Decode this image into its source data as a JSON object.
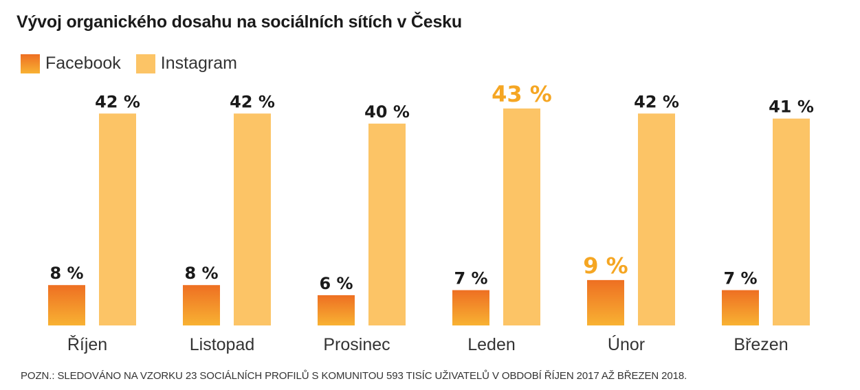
{
  "title": "Vývoj organického dosahu na sociálních sítích v Česku",
  "legend": {
    "facebook": "Facebook",
    "instagram": "Instagram"
  },
  "note": "POZN.: SLEDOVÁNO NA VZORKU 23 SOCIÁLNÍCH PROFILŮ S KOMUNITOU 593 TISÍC UŽIVATELŮ V OBDOBÍ ŘÍJEN 2017 AŽ BŘEZEN 2018.",
  "colors": {
    "facebook_top": "#ee6f22",
    "facebook_bottom": "#f8b233",
    "instagram": "#fcc466",
    "label_default": "#1a1a1a",
    "label_highlight": "#f5a623"
  },
  "chart_data": {
    "type": "bar",
    "categories": [
      "Říjen",
      "Listopad",
      "Prosinec",
      "Leden",
      "Únor",
      "Březen"
    ],
    "series": [
      {
        "name": "Facebook",
        "values": [
          8,
          8,
          6,
          7,
          9,
          7
        ],
        "labels": [
          "8 %",
          "8 %",
          "6 %",
          "7 %",
          "9 %",
          "7 %"
        ],
        "highlight_index": 4
      },
      {
        "name": "Instagram",
        "values": [
          42,
          42,
          40,
          43,
          42,
          41
        ],
        "labels": [
          "42 %",
          "42 %",
          "40 %",
          "43 %",
          "42 %",
          "41 %"
        ],
        "highlight_index": 3
      }
    ],
    "ylim": [
      0,
      43
    ],
    "grid": false,
    "legend_position": "top-left"
  }
}
